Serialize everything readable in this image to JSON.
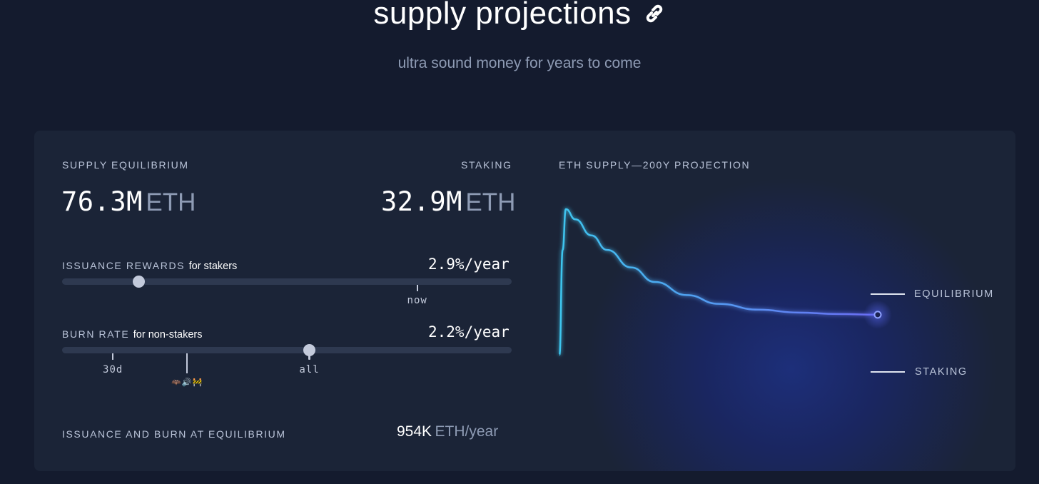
{
  "header": {
    "title": "supply projections",
    "link_icon": "link-icon",
    "subtitle": "ultra sound money for years to come"
  },
  "equilibrium": {
    "label": "SUPPLY EQUILIBRIUM",
    "value": "76.3M",
    "unit": "ETH"
  },
  "staking": {
    "label": "STAKING",
    "value": "32.9M",
    "unit": "ETH"
  },
  "issuance": {
    "label": "ISSUANCE REWARDS",
    "sublabel": "for stakers",
    "rate": "2.9%/year",
    "slider_position": 0.17,
    "now_marker": "now",
    "now_position": 0.79
  },
  "burn": {
    "label": "BURN RATE",
    "sublabel": "for non-stakers",
    "rate": "2.2%/year",
    "slider_position": 0.55,
    "marker_30d": "30d",
    "marker_30d_position": 0.113,
    "marker_usm_position": 0.278,
    "marker_usm_emojis": "🦇🔊🚧",
    "marker_all": "all"
  },
  "equilibrium_flow": {
    "label": "ISSUANCE AND BURN AT EQUILIBRIUM",
    "value": "954K",
    "unit": "ETH/year"
  },
  "chart": {
    "title": "ETH SUPPLY—200Y PROJECTION",
    "legend_equilibrium": "EQUILIBRIUM",
    "legend_staking": "STAKING",
    "colors": {
      "line_start": "#3ec6ef",
      "line_end": "#6b6cf3",
      "point": "#8fa1ff"
    }
  },
  "chart_data": {
    "type": "line",
    "title": "ETH SUPPLY—200Y PROJECTION",
    "xlabel": "",
    "ylabel": "",
    "series": [
      {
        "values": [
          {
            "x": 0,
            "y": 0.0
          },
          {
            "x": 2,
            "y": 0.72
          },
          {
            "x": 4,
            "y": 1.0
          },
          {
            "x": 10,
            "y": 0.93
          },
          {
            "x": 20,
            "y": 0.82
          },
          {
            "x": 30,
            "y": 0.72
          },
          {
            "x": 45,
            "y": 0.6
          },
          {
            "x": 60,
            "y": 0.5
          },
          {
            "x": 80,
            "y": 0.41
          },
          {
            "x": 100,
            "y": 0.35
          },
          {
            "x": 125,
            "y": 0.31
          },
          {
            "x": 150,
            "y": 0.29
          },
          {
            "x": 175,
            "y": 0.28
          },
          {
            "x": 200,
            "y": 0.275
          }
        ]
      }
    ],
    "xlim": [
      0,
      200
    ],
    "ylim": [
      0,
      1
    ],
    "grid": false,
    "legend": "right"
  }
}
